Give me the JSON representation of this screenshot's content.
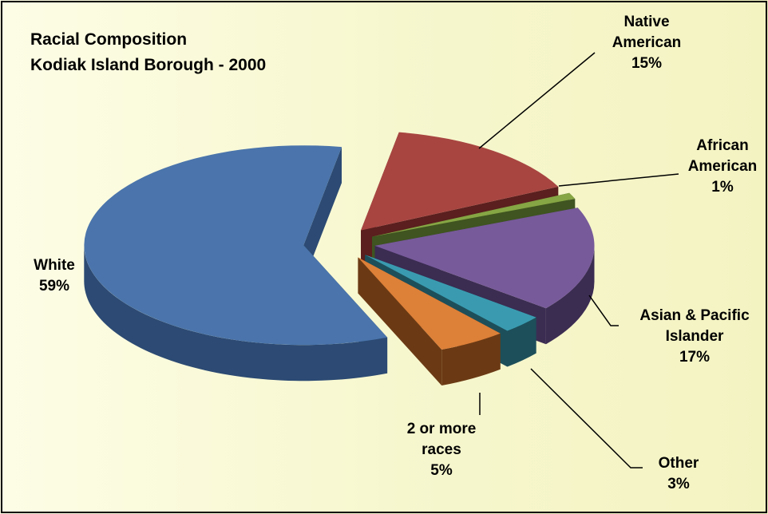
{
  "chart_data": {
    "type": "pie",
    "title": "Racial Composition",
    "subtitle": "Kodiak Island Borough - 2000",
    "categories": [
      "White",
      "Native American",
      "African American",
      "Asian & Pacific Islander",
      "Other",
      "2 or more races"
    ],
    "values": [
      59,
      15,
      1,
      17,
      3,
      5
    ],
    "value_labels": [
      "59%",
      "15%",
      "1%",
      "17%",
      "3%",
      "5%"
    ],
    "colors": [
      "#4a74ab",
      "#a84541",
      "#86a544",
      "#775a9a",
      "#3a9bb0",
      "#dd8038"
    ],
    "side_colors": [
      "#2c4a73",
      "#5a1f1e",
      "#3f5420",
      "#3b2c52",
      "#1d4f5a",
      "#6b3a14"
    ]
  }
}
